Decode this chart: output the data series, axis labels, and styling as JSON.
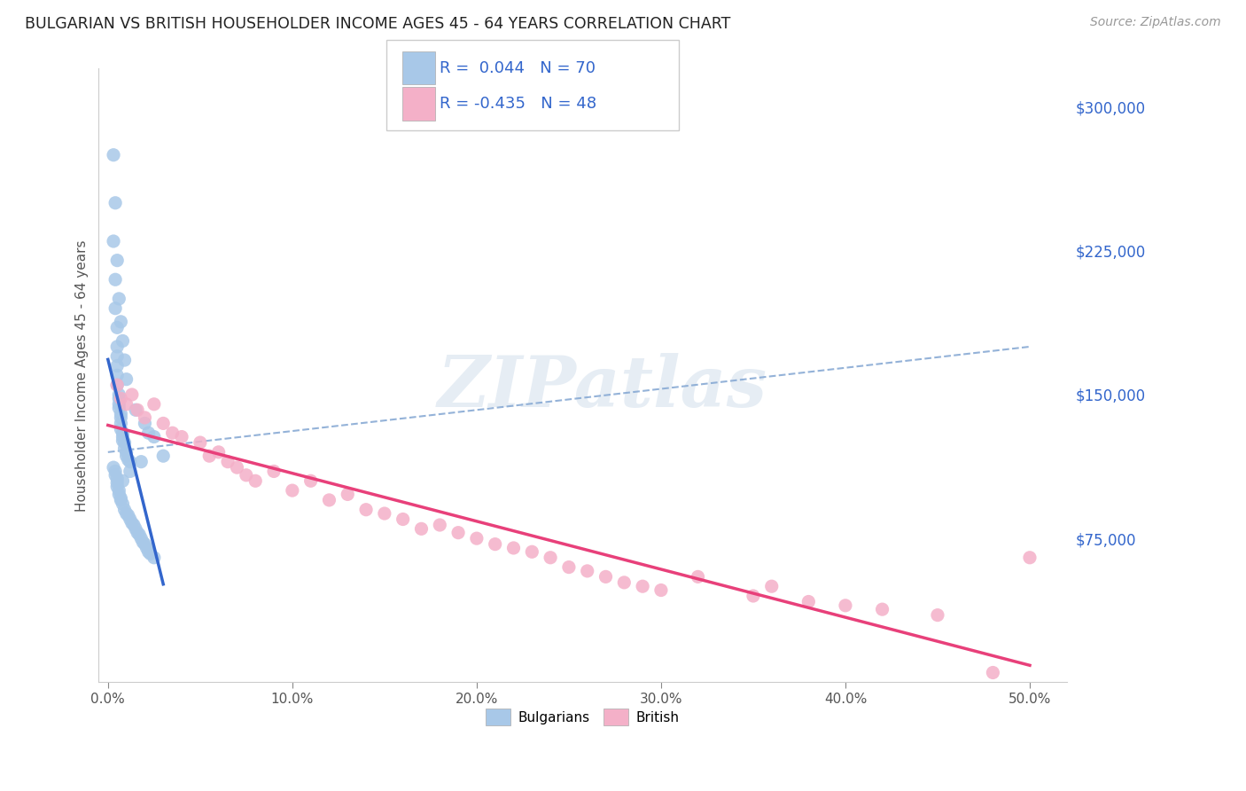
{
  "title": "BULGARIAN VS BRITISH HOUSEHOLDER INCOME AGES 45 - 64 YEARS CORRELATION CHART",
  "source": "Source: ZipAtlas.com",
  "xlabel_ticks": [
    "0.0%",
    "10.0%",
    "20.0%",
    "30.0%",
    "40.0%",
    "50.0%"
  ],
  "xlabel_values": [
    0.0,
    0.1,
    0.2,
    0.3,
    0.4,
    0.5
  ],
  "ylabel": "Householder Income Ages 45 - 64 years",
  "ylabel_right_labels": [
    "$300,000",
    "$225,000",
    "$150,000",
    "$75,000"
  ],
  "ylabel_right_values": [
    300000,
    225000,
    150000,
    75000
  ],
  "ylim": [
    0,
    320000
  ],
  "xlim": [
    -0.005,
    0.52
  ],
  "bg_color": "#ffffff",
  "grid_color": "#e0e0e0",
  "bulgarian_color": "#a8c8e8",
  "british_color": "#f4b0c8",
  "trendline_bulgarian_color": "#3366cc",
  "trendline_british_color": "#e8407a",
  "trendline_dashed_color": "#88aad4",
  "watermark": "ZIPatlas",
  "bulgarians_x": [
    0.003,
    0.004,
    0.004,
    0.005,
    0.005,
    0.005,
    0.005,
    0.005,
    0.005,
    0.006,
    0.006,
    0.006,
    0.006,
    0.007,
    0.007,
    0.007,
    0.007,
    0.008,
    0.008,
    0.008,
    0.009,
    0.009,
    0.01,
    0.01,
    0.011,
    0.012,
    0.003,
    0.004,
    0.004,
    0.005,
    0.005,
    0.005,
    0.006,
    0.006,
    0.007,
    0.007,
    0.008,
    0.009,
    0.01,
    0.011,
    0.012,
    0.013,
    0.014,
    0.015,
    0.016,
    0.017,
    0.018,
    0.019,
    0.02,
    0.021,
    0.022,
    0.023,
    0.025,
    0.003,
    0.004,
    0.005,
    0.006,
    0.007,
    0.008,
    0.009,
    0.01,
    0.015,
    0.02,
    0.025,
    0.03,
    0.022,
    0.018,
    0.012,
    0.008
  ],
  "bulgarians_y": [
    230000,
    210000,
    195000,
    185000,
    175000,
    170000,
    165000,
    160000,
    155000,
    150000,
    148000,
    145000,
    143000,
    140000,
    138000,
    135000,
    132000,
    130000,
    128000,
    126000,
    125000,
    122000,
    120000,
    118000,
    116000,
    115000,
    112000,
    110000,
    108000,
    106000,
    104000,
    102000,
    100000,
    98000,
    96000,
    95000,
    93000,
    90000,
    88000,
    87000,
    85000,
    83000,
    82000,
    80000,
    78000,
    77000,
    75000,
    73000,
    72000,
    70000,
    68000,
    67000,
    65000,
    275000,
    250000,
    220000,
    200000,
    188000,
    178000,
    168000,
    158000,
    142000,
    135000,
    128000,
    118000,
    130000,
    115000,
    110000,
    105000
  ],
  "british_x": [
    0.005,
    0.007,
    0.01,
    0.013,
    0.016,
    0.02,
    0.025,
    0.03,
    0.035,
    0.04,
    0.05,
    0.055,
    0.06,
    0.065,
    0.07,
    0.075,
    0.08,
    0.09,
    0.1,
    0.11,
    0.12,
    0.13,
    0.14,
    0.15,
    0.16,
    0.17,
    0.18,
    0.19,
    0.2,
    0.21,
    0.22,
    0.23,
    0.24,
    0.25,
    0.26,
    0.27,
    0.28,
    0.29,
    0.3,
    0.32,
    0.35,
    0.36,
    0.38,
    0.4,
    0.42,
    0.45,
    0.5,
    0.48
  ],
  "british_y": [
    155000,
    148000,
    145000,
    150000,
    142000,
    138000,
    145000,
    135000,
    130000,
    128000,
    125000,
    118000,
    120000,
    115000,
    112000,
    108000,
    105000,
    110000,
    100000,
    105000,
    95000,
    98000,
    90000,
    88000,
    85000,
    80000,
    82000,
    78000,
    75000,
    72000,
    70000,
    68000,
    65000,
    60000,
    58000,
    55000,
    52000,
    50000,
    48000,
    55000,
    45000,
    50000,
    42000,
    40000,
    38000,
    35000,
    65000,
    5000
  ]
}
